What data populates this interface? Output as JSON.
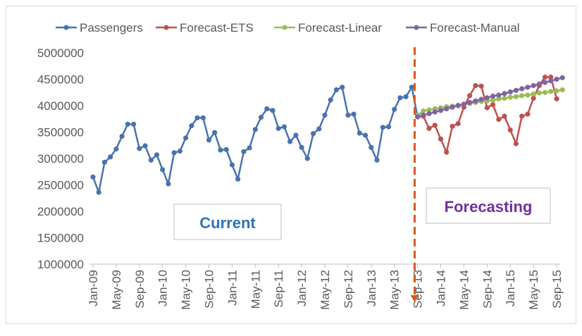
{
  "chart_data": {
    "type": "line",
    "title": "",
    "xlabel": "",
    "ylabel": "",
    "ylim": [
      1000000,
      5000000
    ],
    "y_ticks": [
      "1000000",
      "1500000",
      "2000000",
      "2500000",
      "3000000",
      "3500000",
      "4000000",
      "4500000",
      "5000000"
    ],
    "x_tick_labels": [
      "Jan-09",
      "May-09",
      "Sep-09",
      "Jan-10",
      "May-10",
      "Sep-10",
      "Jan-11",
      "May-11",
      "Sep-11",
      "Jan-12",
      "May-12",
      "Sep-12",
      "Jan-13",
      "May-13",
      "Sep-13",
      "Jan-14",
      "May-14",
      "Sep-14",
      "Jan-15",
      "May-15",
      "Sep-15"
    ],
    "x_start": "Jan-09",
    "x_end": "Sep-15",
    "series": [
      {
        "name": "Passengers",
        "color": "#4a72b0",
        "start_index": 0,
        "values": [
          2650000,
          2360000,
          2930000,
          3030000,
          3180000,
          3420000,
          3650000,
          3650000,
          3190000,
          3240000,
          2970000,
          3070000,
          2790000,
          2520000,
          3110000,
          3140000,
          3390000,
          3620000,
          3770000,
          3770000,
          3350000,
          3490000,
          3160000,
          3170000,
          2880000,
          2610000,
          3130000,
          3200000,
          3550000,
          3780000,
          3940000,
          3910000,
          3570000,
          3600000,
          3320000,
          3440000,
          3210000,
          3000000,
          3470000,
          3560000,
          3820000,
          4110000,
          4300000,
          4350000,
          3820000,
          3840000,
          3480000,
          3440000,
          3210000,
          2970000,
          3590000,
          3600000,
          3930000,
          4150000,
          4170000,
          4350000,
          3790000
        ]
      },
      {
        "name": "Forecast-ETS",
        "color": "#c0504d",
        "start_index": 56,
        "values": [
          3790000,
          3800000,
          3570000,
          3630000,
          3370000,
          3120000,
          3610000,
          3660000,
          3970000,
          4190000,
          4380000,
          4370000,
          3960000,
          4020000,
          3740000,
          3800000,
          3540000,
          3280000,
          3800000,
          3840000,
          4140000,
          4380000,
          4540000,
          4540000,
          4130000
        ]
      },
      {
        "name": "Forecast-Linear",
        "color": "#9bbb59",
        "start_index": 56,
        "values": [
          3820000,
          3900000,
          3920000,
          3940000,
          3960000,
          3980000,
          3990000,
          4010000,
          4030000,
          4040000,
          4060000,
          4080000,
          4090000,
          4110000,
          4130000,
          4140000,
          4160000,
          4170000,
          4190000,
          4200000,
          4220000,
          4240000,
          4250000,
          4270000,
          4280000,
          4300000
        ]
      },
      {
        "name": "Forecast-Manual",
        "color": "#8064a2",
        "start_index": 56,
        "values": [
          3790000,
          3820000,
          3850000,
          3880000,
          3910000,
          3940000,
          3970000,
          4000000,
          4030000,
          4060000,
          4090000,
          4120000,
          4150000,
          4180000,
          4200000,
          4230000,
          4260000,
          4290000,
          4320000,
          4350000,
          4380000,
          4410000,
          4440000,
          4470000,
          4500000,
          4530000
        ]
      }
    ],
    "annotations": {
      "current_label": "Current",
      "forecast_label": "Forecasting",
      "current_color": "#2e75b6",
      "forecast_color": "#7030a0",
      "divider_color": "#d65a1f",
      "divider_index": 55.5
    }
  }
}
